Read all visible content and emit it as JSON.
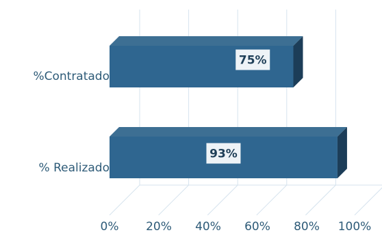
{
  "chart_data": {
    "type": "bar",
    "orientation": "horizontal",
    "three_d": true,
    "categories": [
      "%Contratado",
      "% Realizado"
    ],
    "values": [
      75,
      93
    ],
    "data_labels": [
      "75%",
      "93%"
    ],
    "x_ticks": [
      "0%",
      "20%",
      "40%",
      "60%",
      "80%",
      "100%"
    ],
    "xlim": [
      0,
      100
    ],
    "title": "",
    "xlabel": "",
    "ylabel": "",
    "grid": "vertical",
    "legend": "none",
    "colors": {
      "bar_front": "#2f6690",
      "bar_top": "#3d6f93",
      "bar_side": "#1c3d58",
      "text": "#2e5b78",
      "gridline": "#d6e3ee",
      "label_box": "#eef3f7"
    }
  }
}
